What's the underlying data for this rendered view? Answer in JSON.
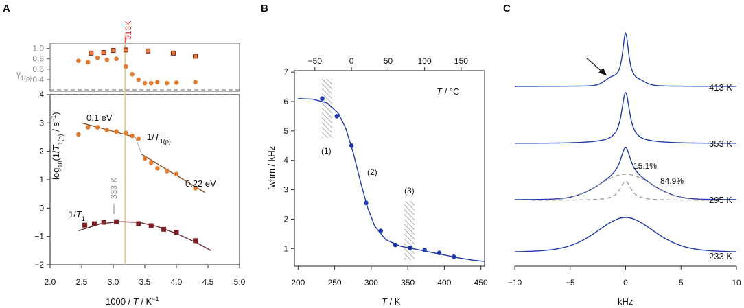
{
  "colors": {
    "orange": "#e07a2e",
    "dark_red": "#7a1f24",
    "brown_line": "#8a4a1a",
    "dark_line": "#6a2a30",
    "blue": "#1f3aa8",
    "grey": "#999999",
    "vline": "#d8c890",
    "red": "#e0202a",
    "hatch": "#888888"
  },
  "chart_data": [
    {
      "panel": "A",
      "type": "scatter",
      "subplots": [
        {
          "name": "gamma",
          "ylabel": "γ1(ρ)",
          "ylim": [
            0.2,
            1.1
          ],
          "yticks": [
            "0.4",
            "0.6",
            "0.8",
            "1.0"
          ],
          "series": [
            {
              "name": "gamma_rho",
              "marker": "square",
              "x": [
                2.65,
                2.85,
                3.0,
                3.2,
                3.55,
                3.95,
                4.3
              ],
              "y": [
                0.91,
                0.92,
                0.96,
                0.97,
                0.95,
                0.91,
                0.85
              ]
            },
            {
              "name": "gamma_1",
              "marker": "circle",
              "x": [
                2.45,
                2.6,
                2.75,
                2.9,
                3.05,
                3.2,
                3.3,
                3.4,
                3.5,
                3.6,
                3.7,
                3.85,
                4.0,
                4.3
              ],
              "y": [
                0.76,
                0.73,
                0.82,
                0.78,
                0.8,
                0.65,
                0.5,
                0.4,
                0.33,
                0.33,
                0.35,
                0.33,
                0.34,
                0.35
              ]
            }
          ]
        },
        {
          "name": "rates",
          "ylabel": "log10(1/T1(ρ) / s⁻¹)",
          "ylim": [
            -2,
            4
          ],
          "yticks": [
            "-2",
            "-1",
            "0",
            "1",
            "2",
            "3",
            "4"
          ],
          "series": [
            {
              "name": "1/T1(rho)",
              "marker": "circle",
              "x": [
                2.45,
                2.6,
                2.75,
                2.9,
                3.05,
                3.2,
                3.3,
                3.4,
                3.5,
                3.6,
                3.7,
                3.85,
                4.0,
                4.3
              ],
              "y": [
                2.6,
                2.85,
                2.85,
                2.75,
                2.7,
                2.65,
                2.55,
                2.45,
                1.75,
                1.6,
                1.4,
                1.3,
                1.2,
                0.7
              ]
            },
            {
              "name": "1/T1",
              "marker": "square",
              "x": [
                2.55,
                2.7,
                2.85,
                3.05,
                3.4,
                3.6,
                3.8,
                4.0,
                4.3
              ],
              "y": [
                -0.6,
                -0.55,
                -0.5,
                -0.48,
                -0.55,
                -0.62,
                -0.75,
                -0.85,
                -1.15
              ]
            }
          ],
          "fits": [
            {
              "name": "fit_rho_low",
              "x": [
                2.5,
                3.35
              ],
              "y": [
                3.0,
                2.5
              ]
            },
            {
              "name": "fit_rho_high",
              "x": [
                3.45,
                4.45
              ],
              "y": [
                1.9,
                0.55
              ]
            },
            {
              "name": "fit_T1",
              "x": [
                2.45,
                2.8,
                3.1,
                3.4,
                3.7,
                4.0,
                4.3,
                4.55
              ],
              "y": [
                -0.8,
                -0.55,
                -0.48,
                -0.5,
                -0.65,
                -0.9,
                -1.2,
                -1.5
              ]
            }
          ]
        }
      ],
      "xlim": [
        2.0,
        5.0
      ],
      "xticks": [
        "2.0",
        "2.5",
        "3.0",
        "3.5",
        "4.0",
        "4.5",
        "5.0"
      ],
      "xlabel": "1000 / T / K⁻¹",
      "vline_x": 3.19,
      "annotations": {
        "marker_313": "313K",
        "marker_333": "333 K",
        "ea_low": "0.1 eV",
        "ea_high": "0.22 eV",
        "label_rho": "1/T1(ρ)",
        "label_T1": "1/T1"
      }
    },
    {
      "panel": "B",
      "type": "scatter",
      "xlim": [
        195,
        455
      ],
      "ylim": [
        0.4,
        7.05
      ],
      "xticks": [
        "200",
        "250",
        "300",
        "350",
        "400",
        "450"
      ],
      "yticks": [
        "1",
        "2",
        "3",
        "4",
        "5",
        "6",
        "7"
      ],
      "top_xticks": [
        "-50",
        "0",
        "50",
        "100",
        "150"
      ],
      "xlabel": "T / K",
      "ylabel": "fwhm / kHz",
      "top_xlabel": "T / °C",
      "series": [
        {
          "name": "fwhm",
          "x": [
            233,
            253,
            273,
            293,
            313,
            333,
            353,
            373,
            393,
            413
          ],
          "y": [
            6.1,
            5.5,
            4.5,
            2.55,
            1.6,
            1.12,
            1.02,
            0.95,
            0.85,
            0.72
          ]
        }
      ],
      "fit": {
        "x": [
          200,
          220,
          240,
          255,
          265,
          275,
          285,
          295,
          305,
          320,
          340,
          360,
          380,
          400,
          420,
          440,
          455
        ],
        "y": [
          6.1,
          6.08,
          5.95,
          5.6,
          5.1,
          4.3,
          3.3,
          2.4,
          1.75,
          1.3,
          1.08,
          0.98,
          0.88,
          0.78,
          0.68,
          0.6,
          0.56
        ]
      },
      "regions": [
        "(1)",
        "(2)",
        "(3)"
      ]
    },
    {
      "panel": "C",
      "type": "line",
      "xlim": [
        -10,
        10
      ],
      "xticks": [
        "−10",
        "−5",
        "0",
        "5",
        "10"
      ],
      "xlabel": "kHz",
      "spectra": [
        {
          "label": "413 K"
        },
        {
          "label": "353 K"
        },
        {
          "label": "295 K"
        },
        {
          "label": "233 K"
        }
      ],
      "components": [
        "15.1%",
        "84.9%"
      ]
    }
  ]
}
